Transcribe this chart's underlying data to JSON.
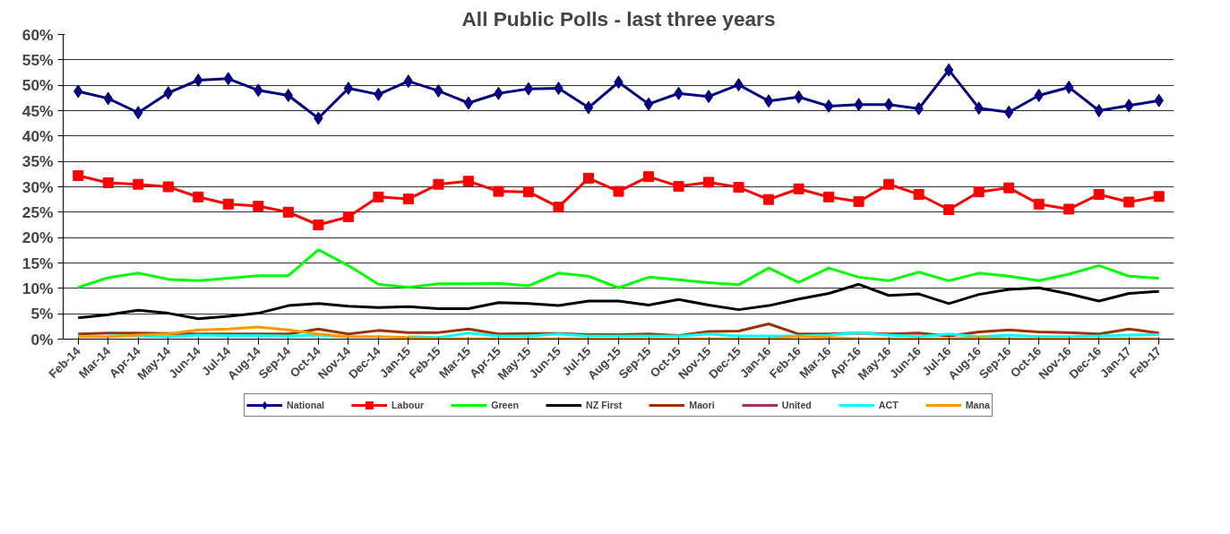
{
  "chart_data": {
    "type": "line",
    "title": "All Public Polls - last three years",
    "categories": [
      "Feb-14",
      "Mar-14",
      "Apr-14",
      "May-14",
      "Jun-14",
      "Jul-14",
      "Aug-14",
      "Sep-14",
      "Oct-14",
      "Nov-14",
      "Dec-14",
      "Jan-15",
      "Feb-15",
      "Mar-15",
      "Apr-15",
      "May-15",
      "Jun-15",
      "Jul-15",
      "Aug-15",
      "Sep-15",
      "Oct-15",
      "Nov-15",
      "Dec-15",
      "Jan-16",
      "Feb-16",
      "Mar-16",
      "Apr-16",
      "May-16",
      "Jun-16",
      "Jul-16",
      "Aug-16",
      "Sep-16",
      "Oct-16",
      "Nov-16",
      "Dec-16",
      "Jan-17",
      "Feb-17"
    ],
    "ylim": [
      0,
      60
    ],
    "yticks": [
      {
        "value": 0,
        "label": "0%"
      },
      {
        "value": 5,
        "label": "5%"
      },
      {
        "value": 10,
        "label": "10%"
      },
      {
        "value": 15,
        "label": "15%"
      },
      {
        "value": 20,
        "label": "20%"
      },
      {
        "value": 25,
        "label": "25%"
      },
      {
        "value": 30,
        "label": "30%"
      },
      {
        "value": 35,
        "label": "35%"
      },
      {
        "value": 40,
        "label": "40%"
      },
      {
        "value": 45,
        "label": "45%"
      },
      {
        "value": 50,
        "label": "50%"
      },
      {
        "value": 55,
        "label": "55%"
      },
      {
        "value": 60,
        "label": "60%"
      }
    ],
    "grid": "y",
    "legend": "bottom",
    "line_style": "solid",
    "series": [
      {
        "name": "National",
        "color": "#000080",
        "marker": "diamond",
        "values": [
          48.8,
          47.4,
          44.6,
          48.5,
          51,
          51.3,
          49,
          48,
          43.5,
          49.4,
          48.2,
          50.8,
          48.9,
          46.5,
          48.4,
          49.3,
          49.4,
          45.6,
          50.6,
          46.3,
          48.4,
          47.8,
          50.1,
          46.9,
          47.7,
          45.9,
          46.2,
          46.2,
          45.4,
          53,
          45.5,
          44.7,
          48,
          49.6,
          45,
          46,
          47
        ]
      },
      {
        "name": "Labour",
        "color": "#ff0000",
        "marker": "square",
        "values": [
          32.2,
          30.8,
          30.5,
          30,
          28,
          26.6,
          26.2,
          25,
          22.5,
          24.1,
          28,
          27.6,
          30.5,
          31.1,
          29.1,
          29,
          26,
          31.7,
          29.1,
          32,
          30.1,
          30.9,
          29.9,
          27.5,
          29.6,
          28,
          27.1,
          30.5,
          28.5,
          25.5,
          29,
          29.8,
          26.6,
          25.6,
          28.5,
          27,
          28.1
        ]
      },
      {
        "name": "Green",
        "color": "#00ff00",
        "marker": "none",
        "values": [
          10.2,
          12.1,
          13,
          11.8,
          11.5,
          12,
          12.5,
          12.5,
          17.6,
          14.5,
          10.8,
          10.2,
          10.9,
          10.9,
          11,
          10.5,
          13,
          12.4,
          10.1,
          12.2,
          11.7,
          11.1,
          10.7,
          14,
          11.2,
          14,
          12.2,
          11.5,
          13.2,
          11.5,
          13,
          12.4,
          11.5,
          12.8,
          14.5,
          12.4,
          12
        ]
      },
      {
        "name": "NZ First",
        "color": "#000000",
        "marker": "none",
        "values": [
          4.2,
          4.8,
          5.7,
          5.1,
          4,
          4.5,
          5.1,
          6.6,
          7,
          6.5,
          6.2,
          6.4,
          6,
          6,
          7.2,
          7,
          6.6,
          7.5,
          7.5,
          6.7,
          7.8,
          6.7,
          5.8,
          6.6,
          7.9,
          9,
          10.8,
          8.6,
          8.9,
          7,
          8.8,
          9.8,
          10.1,
          8.9,
          7.5,
          9,
          9.4
        ]
      },
      {
        "name": "Maori",
        "color": "#993300",
        "marker": "none",
        "values": [
          1.0,
          1.2,
          1.2,
          1.1,
          1.0,
          1.0,
          1.0,
          1.0,
          2.0,
          1.0,
          1.7,
          1.3,
          1.3,
          2.0,
          1.0,
          1.1,
          1.1,
          0.9,
          0.9,
          1.0,
          0.7,
          1.5,
          1.6,
          3.0,
          1.0,
          1.0,
          1.2,
          1.0,
          1.2,
          0.6,
          1.4,
          1.8,
          1.4,
          1.3,
          1.0,
          2.0,
          1.2
        ]
      },
      {
        "name": "United",
        "color": "#993366",
        "marker": "none",
        "values": [
          null,
          null,
          null,
          null,
          null,
          null,
          null,
          null,
          null,
          null,
          null,
          null,
          null,
          null,
          null,
          null,
          null,
          null,
          null,
          null,
          null,
          null,
          null,
          null,
          null,
          null,
          null,
          null,
          null,
          null,
          null,
          null,
          null,
          null,
          null,
          null,
          null
        ]
      },
      {
        "name": "ACT",
        "color": "#00ffff",
        "marker": "none",
        "values": [
          null,
          0.6,
          0.6,
          0.5,
          0.8,
          0.7,
          0.7,
          0.6,
          0.8,
          0.4,
          null,
          0.5,
          0.3,
          1.2,
          0.6,
          0.6,
          1.0,
          0.6,
          0.6,
          0.6,
          0.6,
          1.0,
          0.6,
          0.6,
          0.6,
          0.8,
          1.3,
          0.8,
          0.5,
          1.0,
          0.5,
          0.8,
          0.5,
          0.5,
          0.6,
          0.8,
          0.9
        ]
      },
      {
        "name": "Mana",
        "color": "#ff9900",
        "marker": "none",
        "values": [
          0.5,
          0.5,
          0.8,
          1.0,
          1.8,
          2.0,
          2.4,
          1.8,
          1.0,
          0.5,
          0.5,
          0.3,
          0.1,
          0.1,
          0.1,
          0.1,
          0.1,
          0.1,
          0.1,
          0.1,
          0.1,
          0.1,
          0.1,
          0.1,
          0.5,
          0.3,
          0.1,
          0.1,
          0.1,
          0.1,
          0.3,
          0.1,
          0.1,
          0.1,
          0.1,
          0.1,
          0.1
        ]
      }
    ]
  }
}
